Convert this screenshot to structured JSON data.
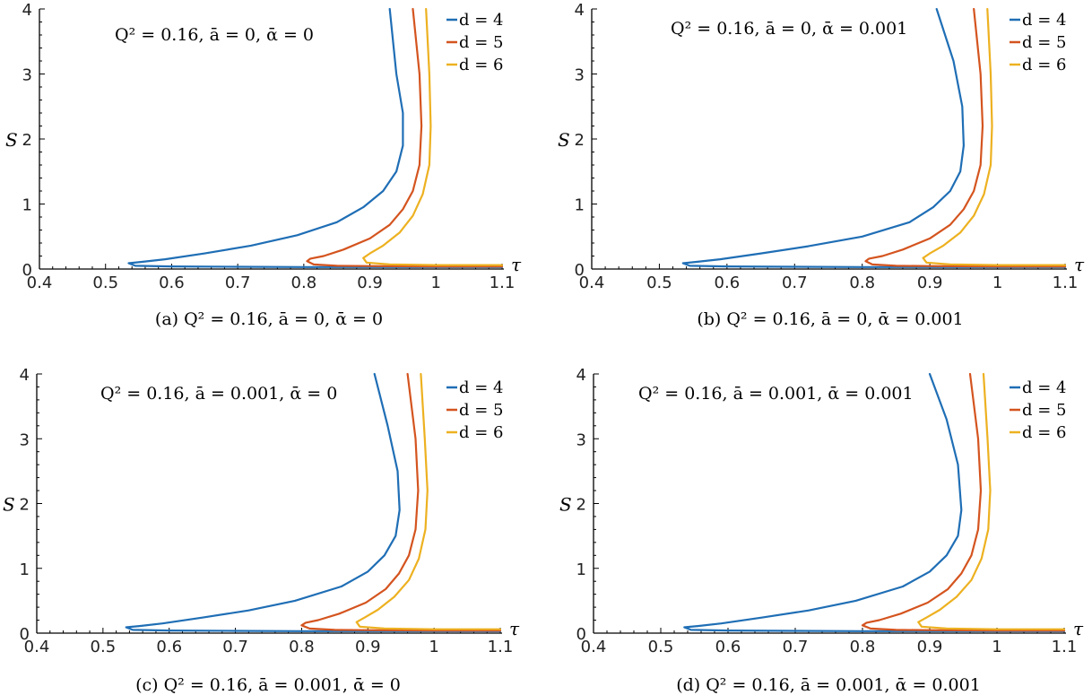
{
  "figure": {
    "colors": {
      "d4": "#1f6eb5",
      "d5": "#d4541f",
      "d6": "#edb120"
    },
    "panels": [
      {
        "caption": "(a) Q² = 0.16, ā = 0, ᾱ = 0",
        "annotation": "Q² = 0.16, ā = 0, ᾱ = 0"
      },
      {
        "caption": "(b) Q² = 0.16, ā = 0, ᾱ = 0.001",
        "annotation": "Q² = 0.16, ā = 0, ᾱ = 0.001"
      },
      {
        "caption": "(c) Q² = 0.16, ā = 0.001, ᾱ = 0",
        "annotation": "Q² = 0.16, ā = 0.001, ᾱ = 0"
      },
      {
        "caption": "(d) Q² = 0.16, ā = 0.001, ᾱ = 0.001",
        "annotation": "Q² = 0.16, ā = 0.001, ᾱ = 0.001"
      }
    ]
  },
  "chart_data": [
    {
      "type": "line",
      "title": "Q² = 0.16, ā = 0, ᾱ = 0",
      "xlabel": "τ",
      "ylabel": "S",
      "xlim": [
        0.4,
        1.1
      ],
      "ylim": [
        0,
        4
      ],
      "xticks": [
        "0.4",
        "0.5",
        "0.6",
        "0.7",
        "0.8",
        "0.9",
        "1",
        "1.1"
      ],
      "yticks": [
        "0",
        "1",
        "2",
        "3",
        "4"
      ],
      "legend_position": "top-right",
      "series": [
        {
          "name": "d = 4",
          "color": "#1f6eb5",
          "x": [
            0.93,
            0.94,
            0.95,
            0.95,
            0.94,
            0.92,
            0.89,
            0.85,
            0.79,
            0.72,
            0.65,
            0.59,
            0.555,
            0.535,
            0.545,
            0.6,
            0.7,
            0.8,
            0.9,
            1.0,
            1.1
          ],
          "y": [
            4.0,
            3.0,
            2.4,
            1.9,
            1.5,
            1.2,
            0.95,
            0.72,
            0.52,
            0.36,
            0.24,
            0.15,
            0.11,
            0.09,
            0.05,
            0.04,
            0.035,
            0.03,
            0.03,
            0.03,
            0.03
          ]
        },
        {
          "name": "d = 5",
          "color": "#d4541f",
          "x": [
            0.965,
            0.975,
            0.978,
            0.975,
            0.965,
            0.95,
            0.93,
            0.9,
            0.86,
            0.83,
            0.81,
            0.805,
            0.815,
            0.85,
            0.9,
            1.0,
            1.1
          ],
          "y": [
            4.0,
            3.0,
            2.2,
            1.6,
            1.2,
            0.92,
            0.68,
            0.47,
            0.3,
            0.2,
            0.16,
            0.12,
            0.07,
            0.05,
            0.045,
            0.04,
            0.04
          ]
        },
        {
          "name": "d = 6",
          "color": "#edb120",
          "x": [
            0.985,
            0.99,
            0.992,
            0.99,
            0.98,
            0.965,
            0.945,
            0.92,
            0.9,
            0.89,
            0.895,
            0.93,
            1.0,
            1.1
          ],
          "y": [
            4.0,
            3.0,
            2.2,
            1.6,
            1.15,
            0.82,
            0.56,
            0.36,
            0.24,
            0.17,
            0.1,
            0.07,
            0.06,
            0.06
          ]
        }
      ]
    },
    {
      "type": "line",
      "title": "Q² = 0.16, ā = 0, ᾱ = 0.001",
      "xlabel": "τ",
      "ylabel": "S",
      "xlim": [
        0.4,
        1.1
      ],
      "ylim": [
        0,
        4
      ],
      "xticks": [
        "0.4",
        "0.5",
        "0.6",
        "0.7",
        "0.8",
        "0.9",
        "1",
        "1.1"
      ],
      "yticks": [
        "0",
        "1",
        "2",
        "3",
        "4"
      ],
      "legend_position": "top-right",
      "series": [
        {
          "name": "d = 4",
          "color": "#1f6eb5",
          "x": [
            0.91,
            0.935,
            0.948,
            0.95,
            0.945,
            0.93,
            0.905,
            0.87,
            0.8,
            0.72,
            0.65,
            0.59,
            0.555,
            0.535,
            0.545,
            0.6,
            0.7,
            0.8,
            0.9,
            1.0,
            1.1
          ],
          "y": [
            4.0,
            3.2,
            2.5,
            1.9,
            1.5,
            1.2,
            0.95,
            0.72,
            0.5,
            0.35,
            0.24,
            0.15,
            0.11,
            0.09,
            0.05,
            0.04,
            0.035,
            0.03,
            0.03,
            0.03,
            0.03
          ]
        },
        {
          "name": "d = 5",
          "color": "#d4541f",
          "x": [
            0.965,
            0.975,
            0.978,
            0.975,
            0.965,
            0.95,
            0.93,
            0.9,
            0.86,
            0.83,
            0.81,
            0.805,
            0.815,
            0.85,
            0.9,
            1.0,
            1.1
          ],
          "y": [
            4.0,
            3.0,
            2.2,
            1.6,
            1.2,
            0.92,
            0.68,
            0.47,
            0.3,
            0.2,
            0.16,
            0.12,
            0.07,
            0.05,
            0.045,
            0.04,
            0.04
          ]
        },
        {
          "name": "d = 6",
          "color": "#edb120",
          "x": [
            0.985,
            0.99,
            0.992,
            0.99,
            0.98,
            0.965,
            0.945,
            0.92,
            0.9,
            0.89,
            0.895,
            0.93,
            1.0,
            1.1
          ],
          "y": [
            4.0,
            3.0,
            2.2,
            1.6,
            1.15,
            0.82,
            0.56,
            0.36,
            0.24,
            0.17,
            0.1,
            0.07,
            0.06,
            0.06
          ]
        }
      ]
    },
    {
      "type": "line",
      "title": "Q² = 0.16, ā = 0.001, ᾱ = 0",
      "xlabel": "τ",
      "ylabel": "S",
      "xlim": [
        0.4,
        1.1
      ],
      "ylim": [
        0,
        4
      ],
      "xticks": [
        "0.4",
        "0.5",
        "0.6",
        "0.7",
        "0.8",
        "0.9",
        "1",
        "1.1"
      ],
      "yticks": [
        "0",
        "1",
        "2",
        "3",
        "4"
      ],
      "legend_position": "top-right",
      "series": [
        {
          "name": "d = 4",
          "color": "#1f6eb5",
          "x": [
            0.91,
            0.93,
            0.945,
            0.948,
            0.942,
            0.925,
            0.9,
            0.86,
            0.79,
            0.72,
            0.65,
            0.59,
            0.555,
            0.535,
            0.545,
            0.6,
            0.7,
            0.8,
            0.9,
            1.0,
            1.1
          ],
          "y": [
            4.0,
            3.2,
            2.5,
            1.9,
            1.5,
            1.2,
            0.95,
            0.72,
            0.5,
            0.35,
            0.24,
            0.15,
            0.11,
            0.09,
            0.05,
            0.04,
            0.035,
            0.03,
            0.03,
            0.03,
            0.03
          ]
        },
        {
          "name": "d = 5",
          "color": "#d4541f",
          "x": [
            0.96,
            0.972,
            0.976,
            0.972,
            0.962,
            0.947,
            0.927,
            0.897,
            0.857,
            0.825,
            0.806,
            0.8,
            0.812,
            0.85,
            0.9,
            1.0,
            1.1
          ],
          "y": [
            4.0,
            3.0,
            2.2,
            1.6,
            1.2,
            0.92,
            0.68,
            0.47,
            0.3,
            0.2,
            0.16,
            0.12,
            0.07,
            0.05,
            0.045,
            0.04,
            0.04
          ]
        },
        {
          "name": "d = 6",
          "color": "#edb120",
          "x": [
            0.98,
            0.986,
            0.99,
            0.987,
            0.977,
            0.962,
            0.94,
            0.915,
            0.895,
            0.883,
            0.888,
            0.925,
            1.0,
            1.1
          ],
          "y": [
            4.0,
            3.0,
            2.2,
            1.6,
            1.15,
            0.82,
            0.56,
            0.36,
            0.24,
            0.17,
            0.1,
            0.07,
            0.06,
            0.06
          ]
        }
      ]
    },
    {
      "type": "line",
      "title": "Q² = 0.16, ā = 0.001, ᾱ = 0.001",
      "xlabel": "τ",
      "ylabel": "S",
      "xlim": [
        0.4,
        1.1
      ],
      "ylim": [
        0,
        4
      ],
      "xticks": [
        "0.4",
        "0.5",
        "0.6",
        "0.7",
        "0.8",
        "0.9",
        "1",
        "1.1"
      ],
      "yticks": [
        "0",
        "1",
        "2",
        "3",
        "4"
      ],
      "legend_position": "top-right",
      "series": [
        {
          "name": "d = 4",
          "color": "#1f6eb5",
          "x": [
            0.9,
            0.925,
            0.942,
            0.947,
            0.942,
            0.925,
            0.9,
            0.86,
            0.79,
            0.72,
            0.65,
            0.59,
            0.555,
            0.535,
            0.545,
            0.6,
            0.7,
            0.8,
            0.9,
            1.0,
            1.1
          ],
          "y": [
            4.0,
            3.3,
            2.6,
            1.9,
            1.5,
            1.2,
            0.95,
            0.72,
            0.5,
            0.35,
            0.24,
            0.15,
            0.11,
            0.09,
            0.05,
            0.04,
            0.035,
            0.03,
            0.03,
            0.03,
            0.03
          ]
        },
        {
          "name": "d = 5",
          "color": "#d4541f",
          "x": [
            0.96,
            0.972,
            0.976,
            0.972,
            0.962,
            0.947,
            0.927,
            0.897,
            0.857,
            0.825,
            0.806,
            0.8,
            0.812,
            0.85,
            0.9,
            1.0,
            1.1
          ],
          "y": [
            4.0,
            3.0,
            2.2,
            1.6,
            1.2,
            0.92,
            0.68,
            0.47,
            0.3,
            0.2,
            0.16,
            0.12,
            0.07,
            0.05,
            0.045,
            0.04,
            0.04
          ]
        },
        {
          "name": "d = 6",
          "color": "#edb120",
          "x": [
            0.98,
            0.986,
            0.99,
            0.987,
            0.977,
            0.962,
            0.94,
            0.915,
            0.895,
            0.883,
            0.888,
            0.925,
            1.0,
            1.1
          ],
          "y": [
            4.0,
            3.0,
            2.2,
            1.6,
            1.15,
            0.82,
            0.56,
            0.36,
            0.24,
            0.17,
            0.1,
            0.07,
            0.06,
            0.06
          ]
        }
      ]
    }
  ]
}
